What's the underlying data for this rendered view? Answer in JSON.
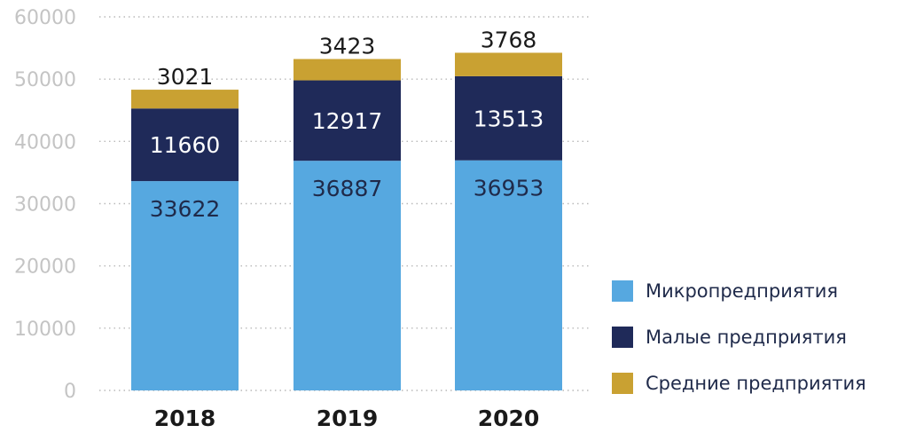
{
  "chart_data": {
    "type": "bar",
    "stacked": true,
    "categories": [
      "2018",
      "2019",
      "2020"
    ],
    "series": [
      {
        "name": "Микропредприятия",
        "values": [
          33622,
          36887,
          36953
        ],
        "color": "#56a8e0",
        "label_color": "#1f2a4a"
      },
      {
        "name": "Малые предприятия",
        "values": [
          11660,
          12917,
          13513
        ],
        "color": "#1f2a59",
        "label_color": "#ffffff"
      },
      {
        "name": "Средние предприятия",
        "values": [
          3021,
          3423,
          3768
        ],
        "color": "#c9a132",
        "label_color": "#1a1a1a"
      }
    ],
    "yticks": [
      "0",
      "10000",
      "20000",
      "30000",
      "40000",
      "50000",
      "60000"
    ],
    "ylim": [
      0,
      60000
    ],
    "grid": true,
    "legend_position": "bottom-right"
  }
}
